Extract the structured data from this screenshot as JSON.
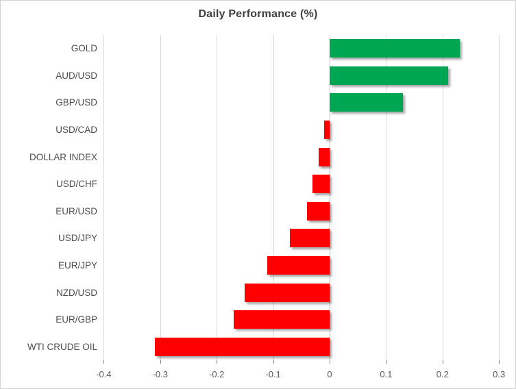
{
  "chart_data": {
    "type": "bar",
    "orientation": "horizontal",
    "title": "Daily Performance (%)",
    "categories": [
      "GOLD",
      "AUD/USD",
      "GBP/USD",
      "USD/CAD",
      "DOLLAR INDEX",
      "USD/CHF",
      "EUR/USD",
      "USD/JPY",
      "EUR/JPY",
      "NZD/USD",
      "EUR/GBP",
      "WTI CRUDE OIL"
    ],
    "values": [
      0.23,
      0.21,
      0.13,
      -0.01,
      -0.02,
      -0.03,
      -0.04,
      -0.07,
      -0.11,
      -0.15,
      -0.17,
      -0.31
    ],
    "xlim": [
      -0.4,
      0.3
    ],
    "xticks": [
      -0.4,
      -0.3,
      -0.2,
      -0.1,
      0,
      0.1,
      0.2,
      0.3
    ],
    "xtick_labels": [
      "-0.4",
      "-0.3",
      "-0.2",
      "-0.1",
      "0",
      "0.1",
      "0.2",
      "0.3"
    ],
    "grid": true,
    "legend": false,
    "positive_color": "#00A651",
    "negative_color": "#FF0000",
    "gridline_color": "#D9D9D9",
    "title_color": "#3F3F3F",
    "label_color": "#4D4D4D",
    "tick_label_color": "#595959"
  }
}
